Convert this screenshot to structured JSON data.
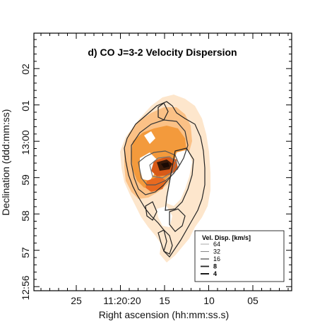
{
  "chart_data": {
    "type": "heatmap",
    "title": "d) CO J=3-2 Velocity Dispersion",
    "xlabel": "Right ascension (hh:mm:ss.s)",
    "ylabel": "Declination (ddd:mm:ss)",
    "x_ticks": [
      "25",
      "11:20:20",
      "15",
      "10",
      "05"
    ],
    "y_ticks": [
      "12:56",
      "57",
      "58",
      "59",
      "13:00",
      "01",
      "02"
    ],
    "grid": false,
    "legend": {
      "title": "Vel. Disp. [km/s]",
      "placement": "bottom-right",
      "entries": [
        {
          "label": "64",
          "color": "#aaaaaa"
        },
        {
          "label": "32",
          "color": "#888888"
        },
        {
          "label": "16",
          "color": "#555555"
        },
        {
          "label": "8",
          "color": "#222222"
        },
        {
          "label": "4",
          "color": "#000000"
        }
      ]
    },
    "colors": {
      "low": "#fde3c4",
      "mid": "#fbb46a",
      "high": "#f08a2a",
      "peak": "#c44a10",
      "max": "#3a1a0a"
    }
  }
}
